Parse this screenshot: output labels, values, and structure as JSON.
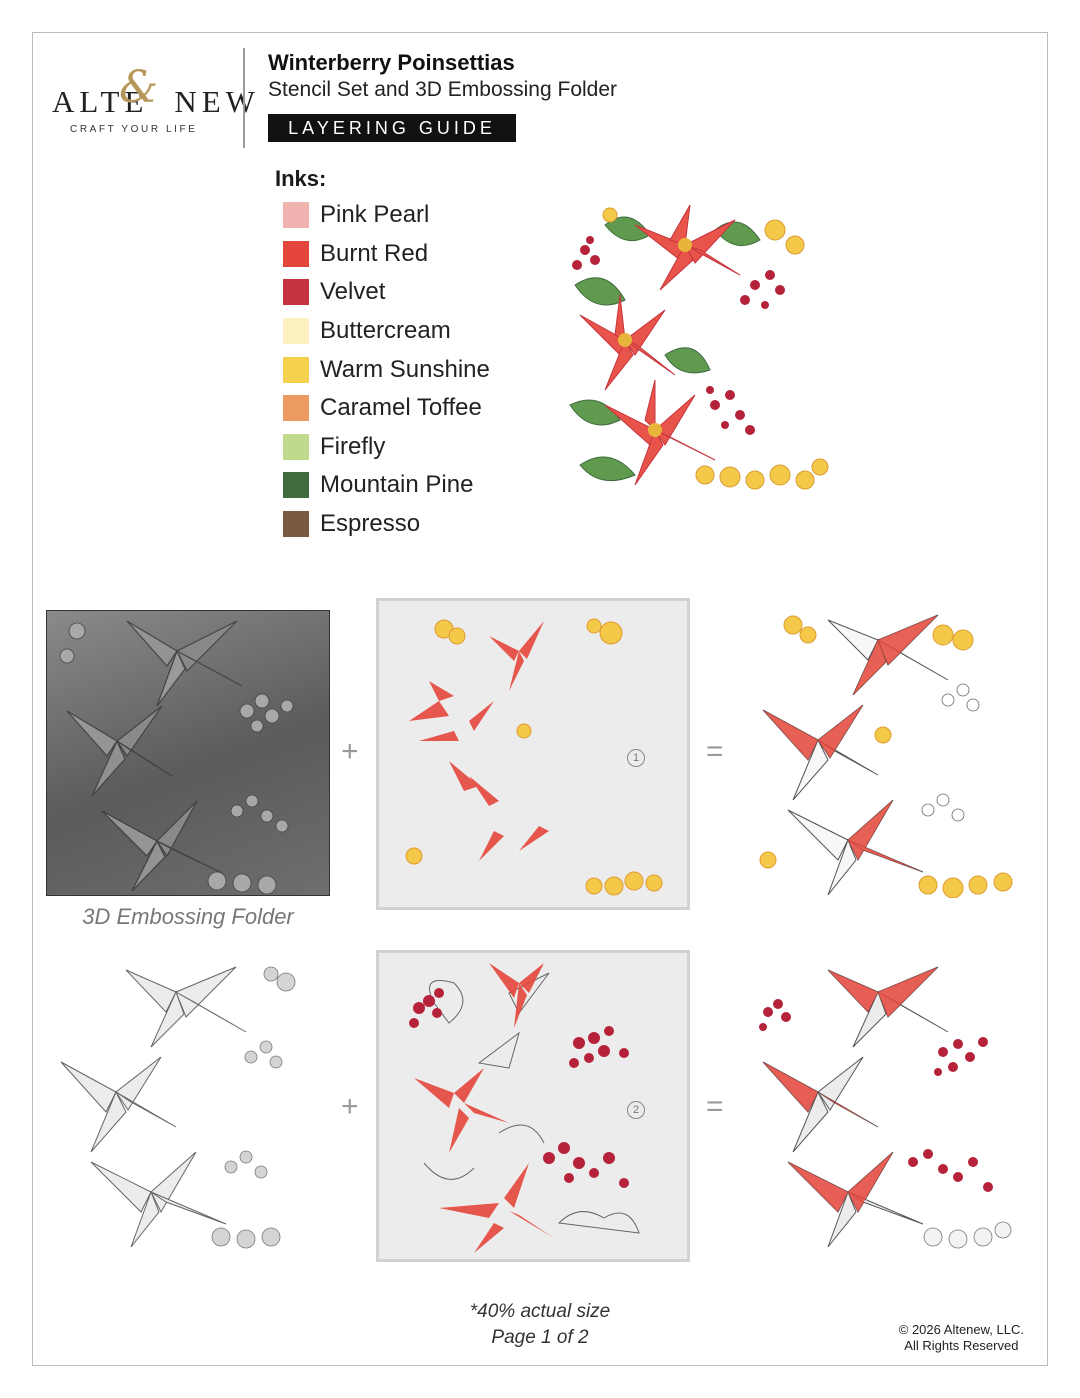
{
  "brand": {
    "name_left": "ALTE",
    "name_right": "NEW",
    "ampersand": "&",
    "tagline": "CRAFT YOUR LIFE"
  },
  "header": {
    "title": "Winterberry Poinsettias",
    "subtitle": "Stencil Set and 3D Embossing Folder",
    "badge": "LAYERING GUIDE"
  },
  "inks": {
    "heading": "Inks:",
    "items": [
      {
        "label": "Pink Pearl",
        "color": "#f1b3b0"
      },
      {
        "label": "Burnt Red",
        "color": "#e5463b"
      },
      {
        "label": "Velvet",
        "color": "#c5343f"
      },
      {
        "label": "Buttercream",
        "color": "#fcefc0"
      },
      {
        "label": "Warm Sunshine",
        "color": "#f6d14f"
      },
      {
        "label": "Caramel Toffee",
        "color": "#eb9a62"
      },
      {
        "label": "Firefly",
        "color": "#bfda8c"
      },
      {
        "label": "Mountain Pine",
        "color": "#3f6b3e"
      },
      {
        "label": "Espresso",
        "color": "#7b5a43"
      }
    ]
  },
  "steps": {
    "plus": "+",
    "equals": "=",
    "folder_caption": "3D Embossing Folder",
    "step1_number": "1",
    "step2_number": "2"
  },
  "footer": {
    "scale_note": "*40% actual size",
    "page": "Page 1 of 2",
    "copyright": "© 2026 Altenew, LLC.",
    "rights": "All Rights Reserved"
  }
}
